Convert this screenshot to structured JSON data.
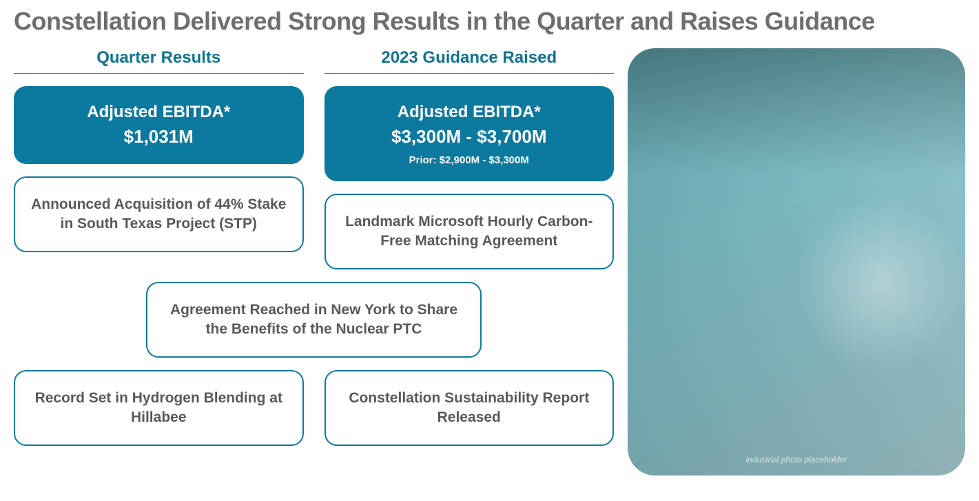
{
  "title": "Constellation Delivered Strong Results in the Quarter and Raises Guidance",
  "colors": {
    "title_color": "#6d6e71",
    "accent": "#0c7a9e",
    "header_text": "#0e7490",
    "outlined_text": "#58595b",
    "outlined_bg": "#ffffff",
    "filled_text": "#ffffff",
    "header_rule": "#6d6e71"
  },
  "typography": {
    "title_fontsize": 36,
    "header_fontsize": 24,
    "card_title_fontsize": 24,
    "card_value_fontsize": 26,
    "card_text_fontsize": 21,
    "card_sub_fontsize": 15
  },
  "layout": {
    "card_border_radius": 18,
    "card_min_height": 110,
    "image_border_radius": 40
  },
  "left_column": {
    "header": "Quarter Results",
    "ebitda": {
      "label": "Adjusted EBITDA*",
      "value": "$1,031M"
    },
    "cards": [
      {
        "text": "Announced Acquisition of 44% Stake in South Texas Project (STP)"
      },
      {
        "text": "Record Set in Hydrogen Blending at Hillabee"
      }
    ]
  },
  "right_column": {
    "header": "2023 Guidance Raised",
    "ebitda": {
      "label": "Adjusted EBITDA*",
      "value": "$3,300M - $3,700M",
      "prior": "Prior: $2,900M - $3,300M"
    },
    "cards": [
      {
        "text": "Landmark Microsoft Hourly Carbon-Free Matching Agreement"
      },
      {
        "text": "Constellation Sustainability Report Released"
      }
    ]
  },
  "center_card": {
    "text": "Agreement Reached in New York to Share the Benefits of the Nuclear PTC"
  },
  "image": {
    "description": "industrial photo placeholder"
  }
}
